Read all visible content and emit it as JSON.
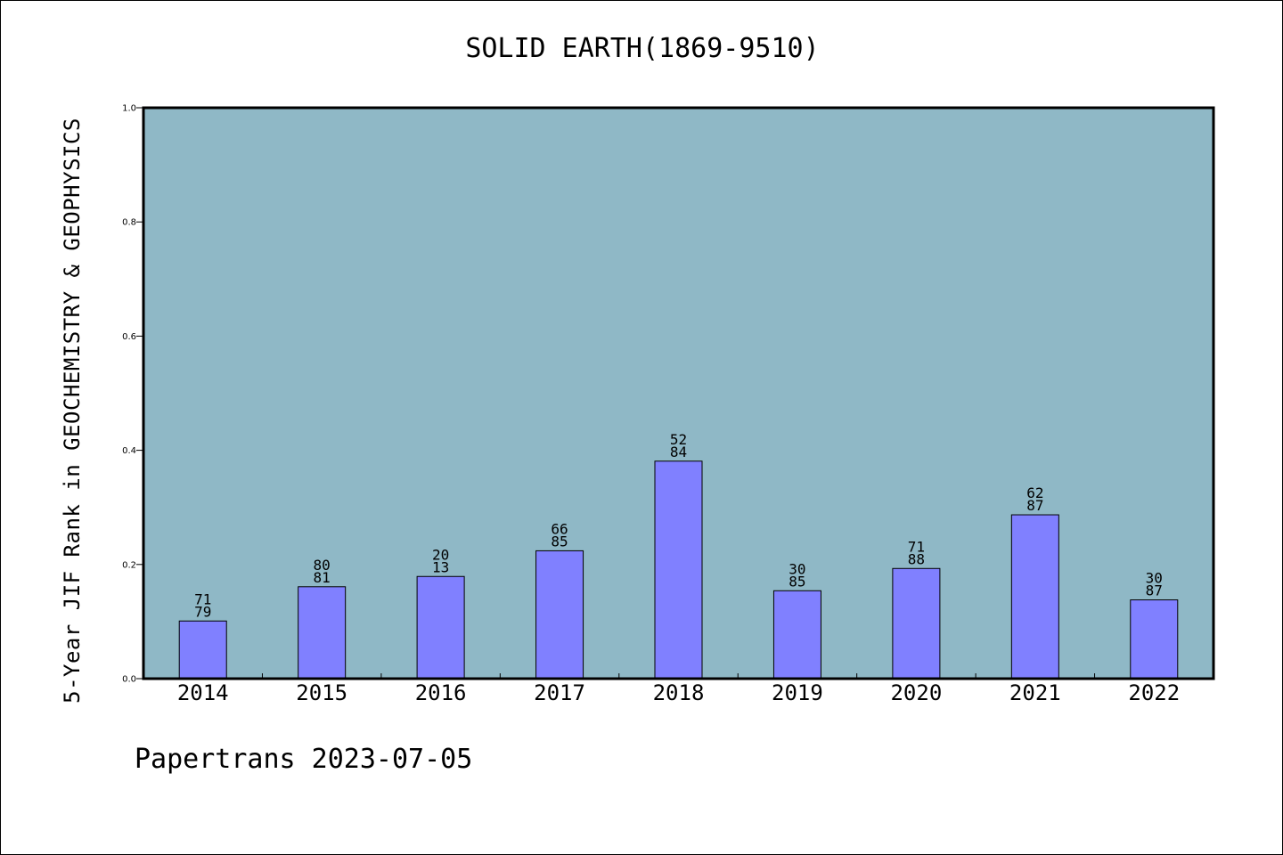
{
  "colors": {
    "plot_background": "#8fb8c6",
    "bar_fill": "#8080ff",
    "bar_stroke": "#000000",
    "frame": "#000000"
  },
  "chart_data": {
    "type": "bar",
    "title": "SOLID EARTH(1869-9510)",
    "ylabel": "5-Year JIF Rank in GEOCHEMISTRY & GEOPHYSICS",
    "xlabel": "",
    "ylim": [
      0,
      1.0
    ],
    "yticks": [
      "0.0",
      "0.2",
      "0.4",
      "0.6",
      "0.8",
      "1.0"
    ],
    "categories": [
      "2014",
      "2015",
      "2016",
      "2017",
      "2018",
      "2019",
      "2020",
      "2021",
      "2022"
    ],
    "values": [
      0.101,
      0.161,
      0.179,
      0.224,
      0.381,
      0.154,
      0.193,
      0.287,
      0.138
    ],
    "labels_top": [
      "71",
      "80",
      "20",
      "66",
      "52",
      "30",
      "71",
      "62",
      "30"
    ],
    "labels_bottom": [
      "79",
      "81",
      "13",
      "85",
      "84",
      "85",
      "88",
      "87",
      "87"
    ],
    "grid": false,
    "legend": "none"
  },
  "footer": {
    "note": "Papertrans 2023-07-05"
  }
}
